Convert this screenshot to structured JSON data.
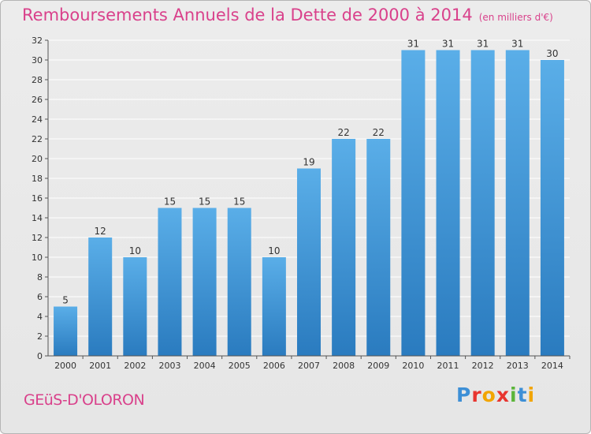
{
  "header": {
    "title": "Remboursements Annuels de la Dette de 2000 à 2014",
    "unit": "(en milliers d'€)"
  },
  "footer": {
    "commune": "GEüS-D'OLORON",
    "logo_letters": [
      "P",
      "r",
      "o",
      "x",
      "i",
      "t",
      "i"
    ],
    "logo_colors": [
      "#3d8fd6",
      "#e8352f",
      "#f2a500",
      "#e8352f",
      "#5bb53a",
      "#3d8fd6",
      "#f2a500"
    ]
  },
  "colors": {
    "accent": "#d9418b",
    "bar_top": "#5aaee8",
    "bar_bottom": "#2a7bbf",
    "grid": "#ffffff",
    "axis": "#555555"
  },
  "chart_data": {
    "type": "bar",
    "title": "Remboursements Annuels de la Dette de 2000 à 2014",
    "xlabel": "",
    "ylabel": "",
    "categories": [
      "2000",
      "2001",
      "2002",
      "2003",
      "2004",
      "2005",
      "2006",
      "2007",
      "2008",
      "2009",
      "2010",
      "2011",
      "2012",
      "2013",
      "2014"
    ],
    "values": [
      5,
      12,
      10,
      15,
      15,
      15,
      10,
      19,
      22,
      22,
      31,
      31,
      31,
      31,
      30
    ],
    "ylim": [
      0,
      32
    ],
    "yticks": [
      0,
      2,
      4,
      6,
      8,
      10,
      12,
      14,
      16,
      18,
      20,
      22,
      24,
      26,
      28,
      30,
      32
    ],
    "grid": true
  }
}
